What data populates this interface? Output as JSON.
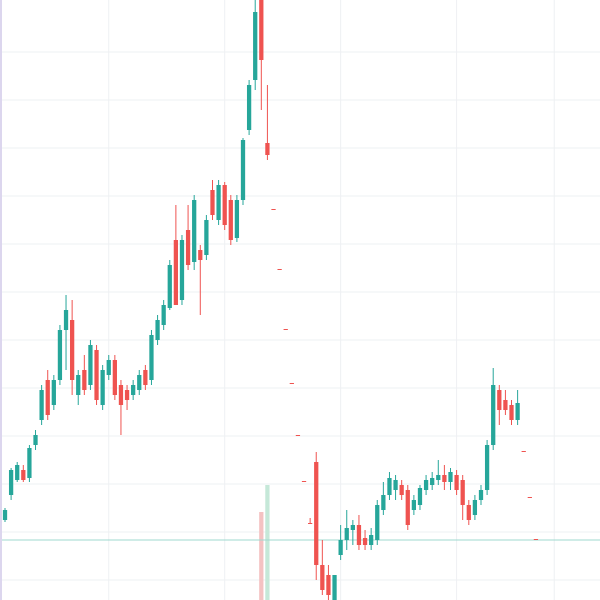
{
  "chart_data": {
    "type": "candlestick",
    "open": [
      80,
      105,
      120,
      130,
      122,
      155,
      180,
      220,
      195,
      220,
      270,
      280,
      205,
      230,
      215,
      250,
      195,
      225,
      240,
      215,
      210,
      205,
      210,
      230,
      220,
      260,
      275,
      292,
      360,
      300,
      370,
      338,
      350,
      345,
      410,
      380,
      415,
      400,
      362,
      400,
      470,
      520,
      600,
      457,
      391,
      331,
      271,
      217,
      165,
      119,
      77,
      138,
      35,
      25,
      0,
      45,
      60,
      70,
      75,
      62,
      55,
      60,
      90,
      105,
      110,
      115,
      110,
      90,
      95,
      110,
      115,
      120,
      125,
      118,
      125,
      120,
      95,
      85,
      100,
      110,
      155,
      210,
      200,
      195,
      180,
      149,
      103,
      61
    ],
    "high": [
      92,
      132,
      138,
      135,
      155,
      170,
      215,
      230,
      225,
      275,
      305,
      300,
      230,
      245,
      260,
      255,
      235,
      245,
      245,
      220,
      215,
      220,
      230,
      235,
      270,
      285,
      300,
      340,
      395,
      365,
      395,
      405,
      355,
      385,
      420,
      420,
      418,
      405,
      405,
      462,
      520,
      600,
      600,
      515,
      391,
      331,
      271,
      217,
      165,
      119,
      82,
      148,
      60,
      35,
      25,
      75,
      90,
      80,
      85,
      70,
      72,
      100,
      118,
      128,
      125,
      120,
      115,
      105,
      115,
      125,
      128,
      140,
      135,
      132,
      130,
      125,
      100,
      105,
      115,
      160,
      232,
      215,
      210,
      200,
      210,
      149,
      103,
      61
    ],
    "low": [
      78,
      100,
      118,
      118,
      118,
      150,
      175,
      180,
      190,
      215,
      230,
      205,
      195,
      205,
      210,
      195,
      190,
      220,
      200,
      165,
      190,
      200,
      205,
      210,
      215,
      255,
      270,
      290,
      295,
      295,
      330,
      330,
      285,
      340,
      380,
      375,
      370,
      355,
      358,
      395,
      465,
      510,
      490,
      440,
      390,
      330,
      270,
      216,
      164,
      118,
      76,
      20,
      5,
      0,
      0,
      40,
      50,
      55,
      50,
      50,
      50,
      55,
      85,
      100,
      100,
      100,
      70,
      85,
      90,
      105,
      110,
      115,
      110,
      110,
      105,
      80,
      75,
      80,
      95,
      105,
      150,
      175,
      185,
      175,
      175,
      148,
      102,
      60
    ],
    "close": [
      90,
      130,
      135,
      120,
      152,
      165,
      210,
      185,
      220,
      270,
      290,
      220,
      225,
      210,
      255,
      200,
      230,
      240,
      205,
      195,
      200,
      215,
      225,
      215,
      265,
      280,
      295,
      335,
      295,
      360,
      335,
      400,
      340,
      380,
      385,
      415,
      375,
      360,
      400,
      460,
      515,
      588,
      540,
      445,
      390,
      330,
      270,
      216,
      164,
      118,
      76,
      35,
      10,
      5,
      25,
      60,
      72,
      75,
      55,
      55,
      65,
      95,
      105,
      122,
      120,
      105,
      75,
      100,
      112,
      120,
      122,
      125,
      118,
      128,
      110,
      95,
      80,
      100,
      110,
      155,
      215,
      190,
      190,
      180,
      197,
      148,
      102,
      60
    ],
    "volume": [
      null,
      null,
      null,
      null,
      null,
      null,
      null,
      null,
      null,
      null,
      null,
      null,
      null,
      null,
      null,
      null,
      null,
      null,
      null,
      null,
      null,
      null,
      null,
      null,
      null,
      null,
      null,
      null,
      null,
      null,
      null,
      null,
      null,
      null,
      null,
      null,
      null,
      null,
      null,
      null,
      null,
      null,
      88,
      115,
      null,
      null,
      null,
      null,
      null,
      null,
      null,
      null,
      null,
      null,
      null,
      null,
      null,
      null,
      null,
      null,
      null,
      null,
      null,
      null,
      null,
      null,
      null,
      null,
      null,
      null,
      null,
      null,
      null,
      null,
      null,
      null,
      null,
      null,
      null,
      null,
      null,
      null,
      null,
      null,
      null,
      null,
      null,
      null
    ],
    "volume_colors": {
      "42": "#f4c2c2",
      "43": "#c5e8d8"
    },
    "up_color": "#26a69a",
    "down_color": "#ef5350",
    "price_line": 60,
    "price_line_color": "#9fd8cf",
    "xlim": [
      -0.82,
      97.5
    ],
    "ylim": [
      0,
      600
    ],
    "xticks": [
      17,
      36,
      55,
      74,
      90
    ],
    "yticks": [
      20,
      68,
      116,
      164,
      212,
      260,
      308,
      356,
      404,
      452,
      500,
      548
    ],
    "grid": true
  }
}
